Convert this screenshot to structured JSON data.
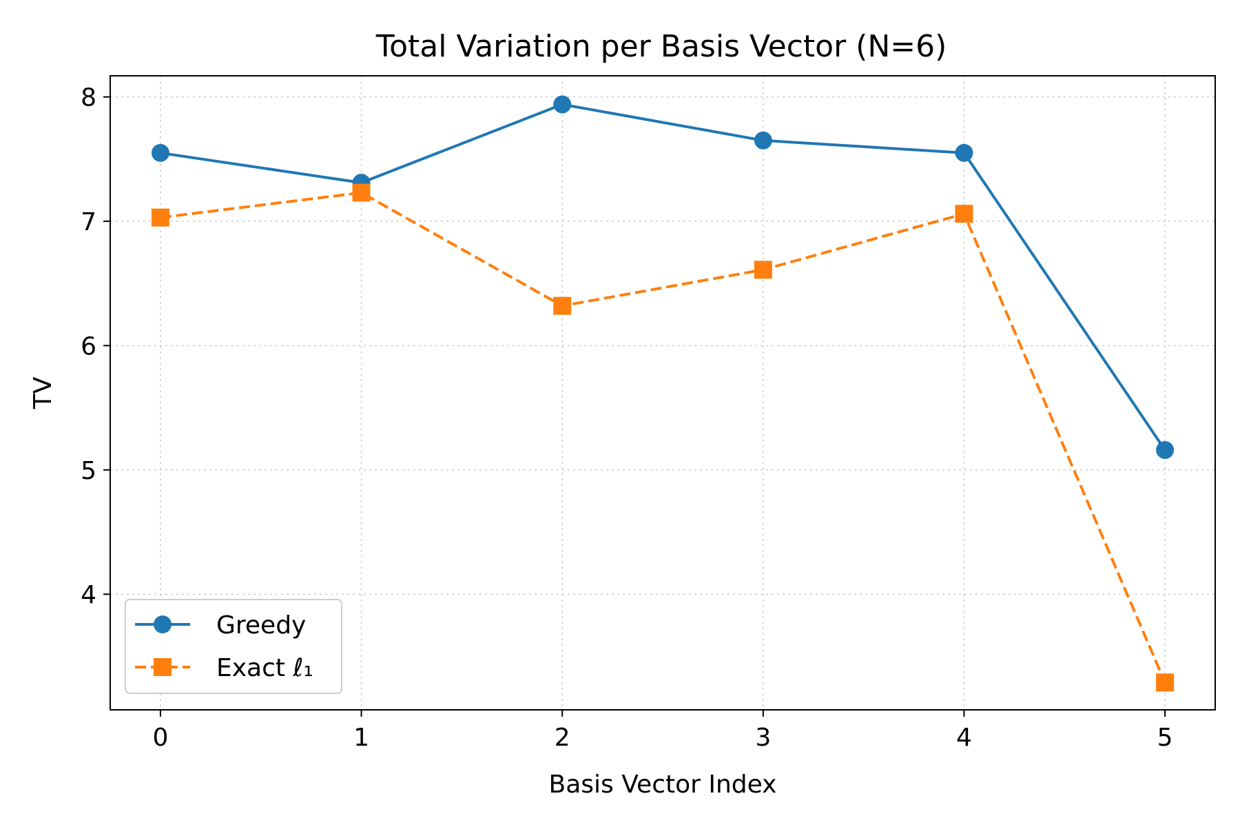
{
  "chart_data": {
    "type": "line",
    "title": "Total Variation per Basis Vector (N=6)",
    "xlabel": "Basis Vector Index",
    "ylabel": "TV",
    "x": [
      0,
      1,
      2,
      3,
      4,
      5
    ],
    "xticks": [
      "0",
      "1",
      "2",
      "3",
      "4",
      "5"
    ],
    "yticks": [
      "4",
      "5",
      "6",
      "7",
      "8"
    ],
    "xlim": [
      -0.25,
      5.25
    ],
    "ylim": [
      3.07,
      8.17
    ],
    "grid": true,
    "legend_position": "lower-left",
    "series": [
      {
        "name": "Greedy",
        "values": [
          7.55,
          7.31,
          7.94,
          7.65,
          7.55,
          5.16
        ],
        "color": "#1f77b4",
        "marker": "circle",
        "linestyle": "solid"
      },
      {
        "name": "Exact ℓ₁",
        "values": [
          7.03,
          7.23,
          6.32,
          6.61,
          7.06,
          3.29
        ],
        "color": "#ff7f0e",
        "marker": "square",
        "linestyle": "dashed"
      }
    ]
  }
}
